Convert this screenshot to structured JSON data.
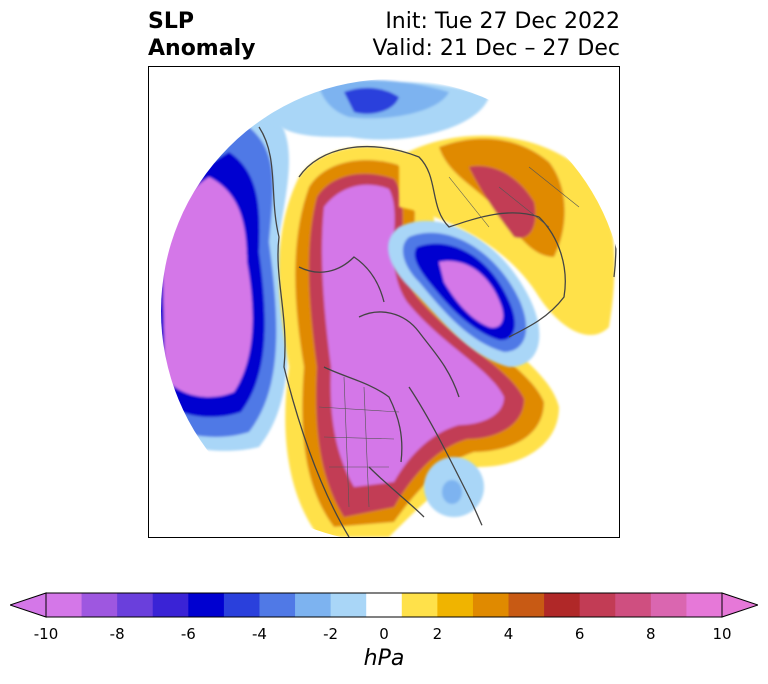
{
  "header": {
    "left_line1": "SLP",
    "left_line2": "Anomaly",
    "right_line1": "Init: Tue 27 Dec 2022",
    "right_line2": "Valid: 21 Dec – 27 Dec"
  },
  "colorbar": {
    "levels": [
      -10,
      -9,
      -8,
      -7,
      -6,
      -5,
      -4,
      -3,
      -2,
      -1,
      1,
      2,
      3,
      4,
      5,
      6,
      7,
      8,
      9,
      10
    ],
    "colors": [
      "#d477e8",
      "#9e57e0",
      "#6a3fdc",
      "#3a23d6",
      "#0000d0",
      "#2a40dc",
      "#5079e6",
      "#7db3f0",
      "#a9d6f7",
      "#ffffff",
      "#ffe14a",
      "#f0b400",
      "#e08a00",
      "#c85a14",
      "#b02828",
      "#c23c55",
      "#cf4f80",
      "#da66b0",
      "#e678d8"
    ],
    "under_color": "#d477e8",
    "over_color": "#e678d8",
    "tick_labels": [
      "-10",
      "-8",
      "-6",
      "-4",
      "-2",
      "0",
      "2",
      "4",
      "6",
      "8",
      "10"
    ],
    "unit": "hPa"
  },
  "map": {
    "projection": "polar-stereographic-north",
    "anomalies": [
      {
        "region": "North Pacific / Gulf of Alaska",
        "sign": "negative",
        "peak_hPa": -10
      },
      {
        "region": "North America",
        "sign": "positive",
        "peak_hPa": 10
      },
      {
        "region": "Arctic / Barents Sea",
        "sign": "negative",
        "peak_hPa": -10
      },
      {
        "region": "Siberia",
        "sign": "positive",
        "peak_hPa": 6
      },
      {
        "region": "Western Europe",
        "sign": "negative",
        "peak_hPa": -6
      },
      {
        "region": "Central Atlantic",
        "sign": "negative",
        "peak_hPa": -3
      },
      {
        "region": "North Atlantic",
        "sign": "positive",
        "peak_hPa": 8
      }
    ]
  }
}
